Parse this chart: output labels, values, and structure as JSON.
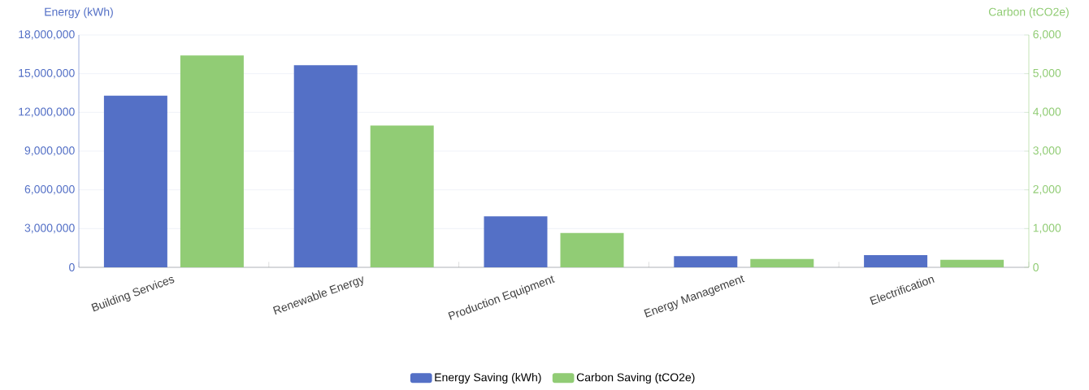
{
  "chart_data": {
    "type": "bar",
    "categories": [
      "Building Services",
      "Renewable Energy",
      "Production Equipment",
      "Energy Management",
      "Electrification"
    ],
    "series": [
      {
        "name": "Energy Saving (kWh)",
        "color": "#5470c6",
        "values": [
          13300000,
          15650000,
          3950000,
          860000,
          940000
        ]
      },
      {
        "name": "Carbon Saving (tCO2e)",
        "color": "#91cc75",
        "axis": "y2",
        "values": [
          5470,
          3660,
          884,
          214,
          196
        ]
      }
    ],
    "ylabel": "Energy (kWh)",
    "y2label": "Carbon (tCO2e)",
    "ylim": [
      0,
      18000000
    ],
    "yticks": [
      0,
      {
        "value": 3000000,
        "label": "3,000,000"
      },
      {
        "value": 6000000,
        "label": "6,000,000"
      },
      {
        "value": 9000000,
        "label": "9,000,000"
      },
      {
        "value": 12000000,
        "label": "12,000,000"
      },
      {
        "value": 15000000,
        "label": "15,000,000"
      },
      {
        "value": 18000000,
        "label": "18,000,000"
      }
    ],
    "y2lim": [
      0,
      6000
    ],
    "y2ticks": [
      0,
      {
        "value": 1000,
        "label": "1,000"
      },
      {
        "value": 2000,
        "label": "2,000"
      },
      {
        "value": 3000,
        "label": "3,000"
      },
      {
        "value": 4000,
        "label": "4,000"
      },
      {
        "value": 5000,
        "label": "5,000"
      },
      {
        "value": 6000,
        "label": "6,000"
      }
    ],
    "grid": "y",
    "legend": "bottom"
  }
}
